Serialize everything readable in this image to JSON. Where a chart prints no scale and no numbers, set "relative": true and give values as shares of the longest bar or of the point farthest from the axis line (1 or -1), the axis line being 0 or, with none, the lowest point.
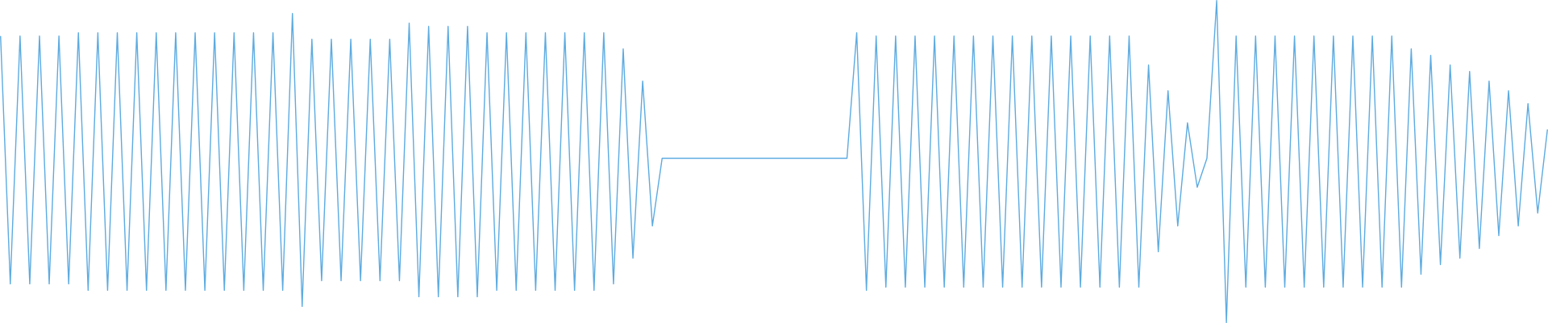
{
  "chart_data": {
    "type": "line",
    "relative": true,
    "color": "#5dabe1",
    "marker": "none",
    "line_style": "solid",
    "categories": [
      null,
      null,
      null,
      null,
      null,
      null,
      null,
      null,
      null,
      null,
      null,
      null,
      null,
      null,
      null,
      null,
      null,
      null,
      null,
      null,
      null,
      null,
      null,
      null,
      null,
      null,
      null,
      null,
      null,
      null,
      null,
      null,
      null,
      null,
      null,
      null,
      null,
      null,
      null,
      null,
      null,
      null,
      null,
      null,
      null,
      null,
      null,
      null,
      null,
      null,
      null,
      null,
      null,
      null,
      null,
      null,
      null,
      null,
      null,
      null,
      null,
      null,
      null,
      null,
      null,
      null,
      null,
      null,
      null,
      null,
      null,
      null,
      null,
      null,
      null,
      null,
      null,
      null,
      null,
      null,
      null,
      null,
      null,
      null,
      null,
      null,
      null,
      null,
      null,
      null,
      null,
      null,
      null,
      null,
      null,
      null,
      null,
      null,
      null,
      null,
      null,
      null,
      null,
      null,
      null,
      null,
      null,
      null,
      null,
      null,
      null,
      null,
      null,
      null,
      null,
      null,
      null,
      null,
      null,
      null,
      null,
      null,
      null,
      null,
      null,
      null,
      null,
      null,
      null,
      null,
      null,
      null,
      null,
      null,
      null,
      null,
      null,
      null,
      null,
      null,
      null,
      null,
      null,
      null,
      null,
      null,
      null,
      null,
      null,
      null,
      null,
      null,
      null,
      null,
      null,
      null,
      null,
      null,
      null,
      null
    ],
    "values": [
      0.89,
      0.12,
      0.89,
      0.12,
      0.89,
      0.12,
      0.89,
      0.12,
      0.9,
      0.1,
      0.9,
      0.1,
      0.9,
      0.1,
      0.9,
      0.1,
      0.9,
      0.1,
      0.9,
      0.1,
      0.9,
      0.1,
      0.9,
      0.1,
      0.9,
      0.1,
      0.9,
      0.1,
      0.9,
      0.1,
      0.96,
      0.05,
      0.88,
      0.13,
      0.88,
      0.13,
      0.88,
      0.13,
      0.88,
      0.13,
      0.88,
      0.13,
      0.93,
      0.08,
      0.92,
      0.08,
      0.92,
      0.08,
      0.92,
      0.08,
      0.9,
      0.1,
      0.9,
      0.1,
      0.9,
      0.1,
      0.9,
      0.1,
      0.9,
      0.1,
      0.9,
      0.1,
      0.9,
      0.12,
      0.85,
      0.2,
      0.75,
      0.3,
      0.51,
      0.51,
      0.51,
      0.51,
      0.51,
      0.51,
      0.51,
      0.51,
      0.51,
      0.51,
      0.51,
      0.51,
      0.51,
      0.51,
      0.51,
      0.51,
      0.51,
      0.51,
      0.51,
      0.51,
      0.9,
      0.1,
      0.89,
      0.11,
      0.89,
      0.11,
      0.89,
      0.11,
      0.89,
      0.11,
      0.89,
      0.11,
      0.89,
      0.11,
      0.89,
      0.11,
      0.89,
      0.11,
      0.89,
      0.11,
      0.89,
      0.11,
      0.89,
      0.11,
      0.89,
      0.11,
      0.89,
      0.11,
      0.89,
      0.11,
      0.8,
      0.22,
      0.72,
      0.3,
      0.62,
      0.42,
      0.51,
      1,
      0,
      0.89,
      0.11,
      0.89,
      0.11,
      0.89,
      0.11,
      0.89,
      0.11,
      0.89,
      0.11,
      0.89,
      0.11,
      0.89,
      0.11,
      0.89,
      0.11,
      0.89,
      0.11,
      0.85,
      0.15,
      0.83,
      0.18,
      0.8,
      0.2,
      0.78,
      0.23,
      0.75,
      0.27,
      0.72,
      0.3,
      0.68,
      0.34,
      0.6
    ]
  }
}
